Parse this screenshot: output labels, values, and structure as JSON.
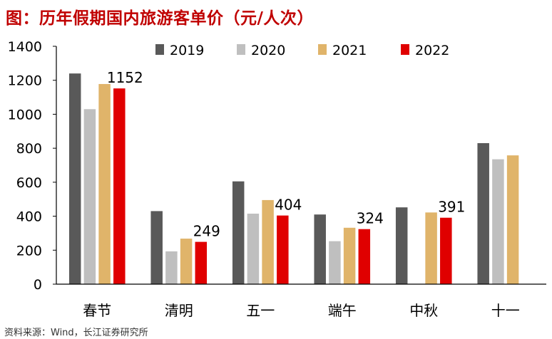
{
  "title": "图：历年假期国内旅游客单价（元/人次）",
  "source": "资料来源：Wind，长江证券研究所",
  "chart_data": {
    "type": "bar",
    "title": "图：历年假期国内旅游客单价（元/人次）",
    "xlabel": "",
    "ylabel": "",
    "ylim": [
      0,
      1400
    ],
    "yticks": [
      0,
      200,
      400,
      600,
      800,
      1000,
      1200,
      1400
    ],
    "grid": false,
    "legend_position": "top",
    "categories": [
      "春节",
      "清明",
      "五一",
      "端午",
      "中秋",
      "十一"
    ],
    "series": [
      {
        "name": "2019",
        "color": "#595959",
        "values": [
          1240,
          430,
          605,
          410,
          452,
          830
        ]
      },
      {
        "name": "2020",
        "color": "#bfbfbf",
        "values": [
          1030,
          193,
          415,
          253,
          null,
          735
        ]
      },
      {
        "name": "2021",
        "color": "#e0b46a",
        "values": [
          1178,
          268,
          495,
          332,
          422,
          758
        ]
      },
      {
        "name": "2022",
        "color": "#e00000",
        "values": [
          1152,
          249,
          404,
          324,
          391,
          null
        ]
      }
    ],
    "data_labels": [
      {
        "series": "2022",
        "category": "春节",
        "text": "1152"
      },
      {
        "series": "2022",
        "category": "清明",
        "text": "249"
      },
      {
        "series": "2022",
        "category": "五一",
        "text": "404"
      },
      {
        "series": "2022",
        "category": "端午",
        "text": "324"
      },
      {
        "series": "2022",
        "category": "中秋",
        "text": "391"
      }
    ]
  }
}
